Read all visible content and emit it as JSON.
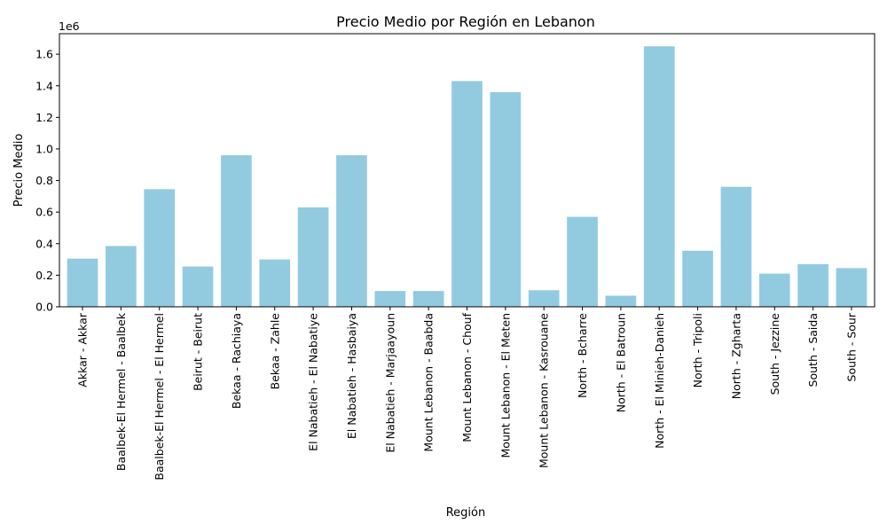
{
  "chart_data": {
    "type": "bar",
    "title": "Precio Medio por Región en Lebanon",
    "xlabel": "Región",
    "ylabel": "Precio Medio",
    "y_scale_label": "1e6",
    "ylim": [
      0,
      1.73
    ],
    "yticks": [
      0.0,
      0.2,
      0.4,
      0.6,
      0.8,
      1.0,
      1.2,
      1.4,
      1.6
    ],
    "ytick_labels": [
      "0.0",
      "0.2",
      "0.4",
      "0.6",
      "0.8",
      "1.0",
      "1.2",
      "1.4",
      "1.6"
    ],
    "bar_color": "#92cbe0",
    "grid": false,
    "categories": [
      "Akkar - Akkar",
      "Baalbek-El Hermel - Baalbek",
      "Baalbek-El Hermel - El Hermel",
      "Beirut - Beirut",
      "Bekaa - Rachiaya",
      "Bekaa - Zahle",
      "El Nabatieh - El Nabatiye",
      "El Nabatieh - Hasbaiya",
      "El Nabatieh - Marjaayoun",
      "Mount Lebanon - Baabda",
      "Mount Lebanon - Chouf",
      "Mount Lebanon - El Meten",
      "Mount Lebanon - Kasrouane",
      "North - Bcharre",
      "North - El Batroun",
      "North - El Minieh-Danieh",
      "North - Tripoli",
      "North - Zgharta",
      "South - Jezzine",
      "South - Saida",
      "South - Sour"
    ],
    "values": [
      0.305,
      0.385,
      0.745,
      0.255,
      0.96,
      0.3,
      0.63,
      0.96,
      0.1,
      0.1,
      1.43,
      1.36,
      0.105,
      0.57,
      0.07,
      1.65,
      0.355,
      0.76,
      0.21,
      0.27,
      0.245
    ]
  }
}
